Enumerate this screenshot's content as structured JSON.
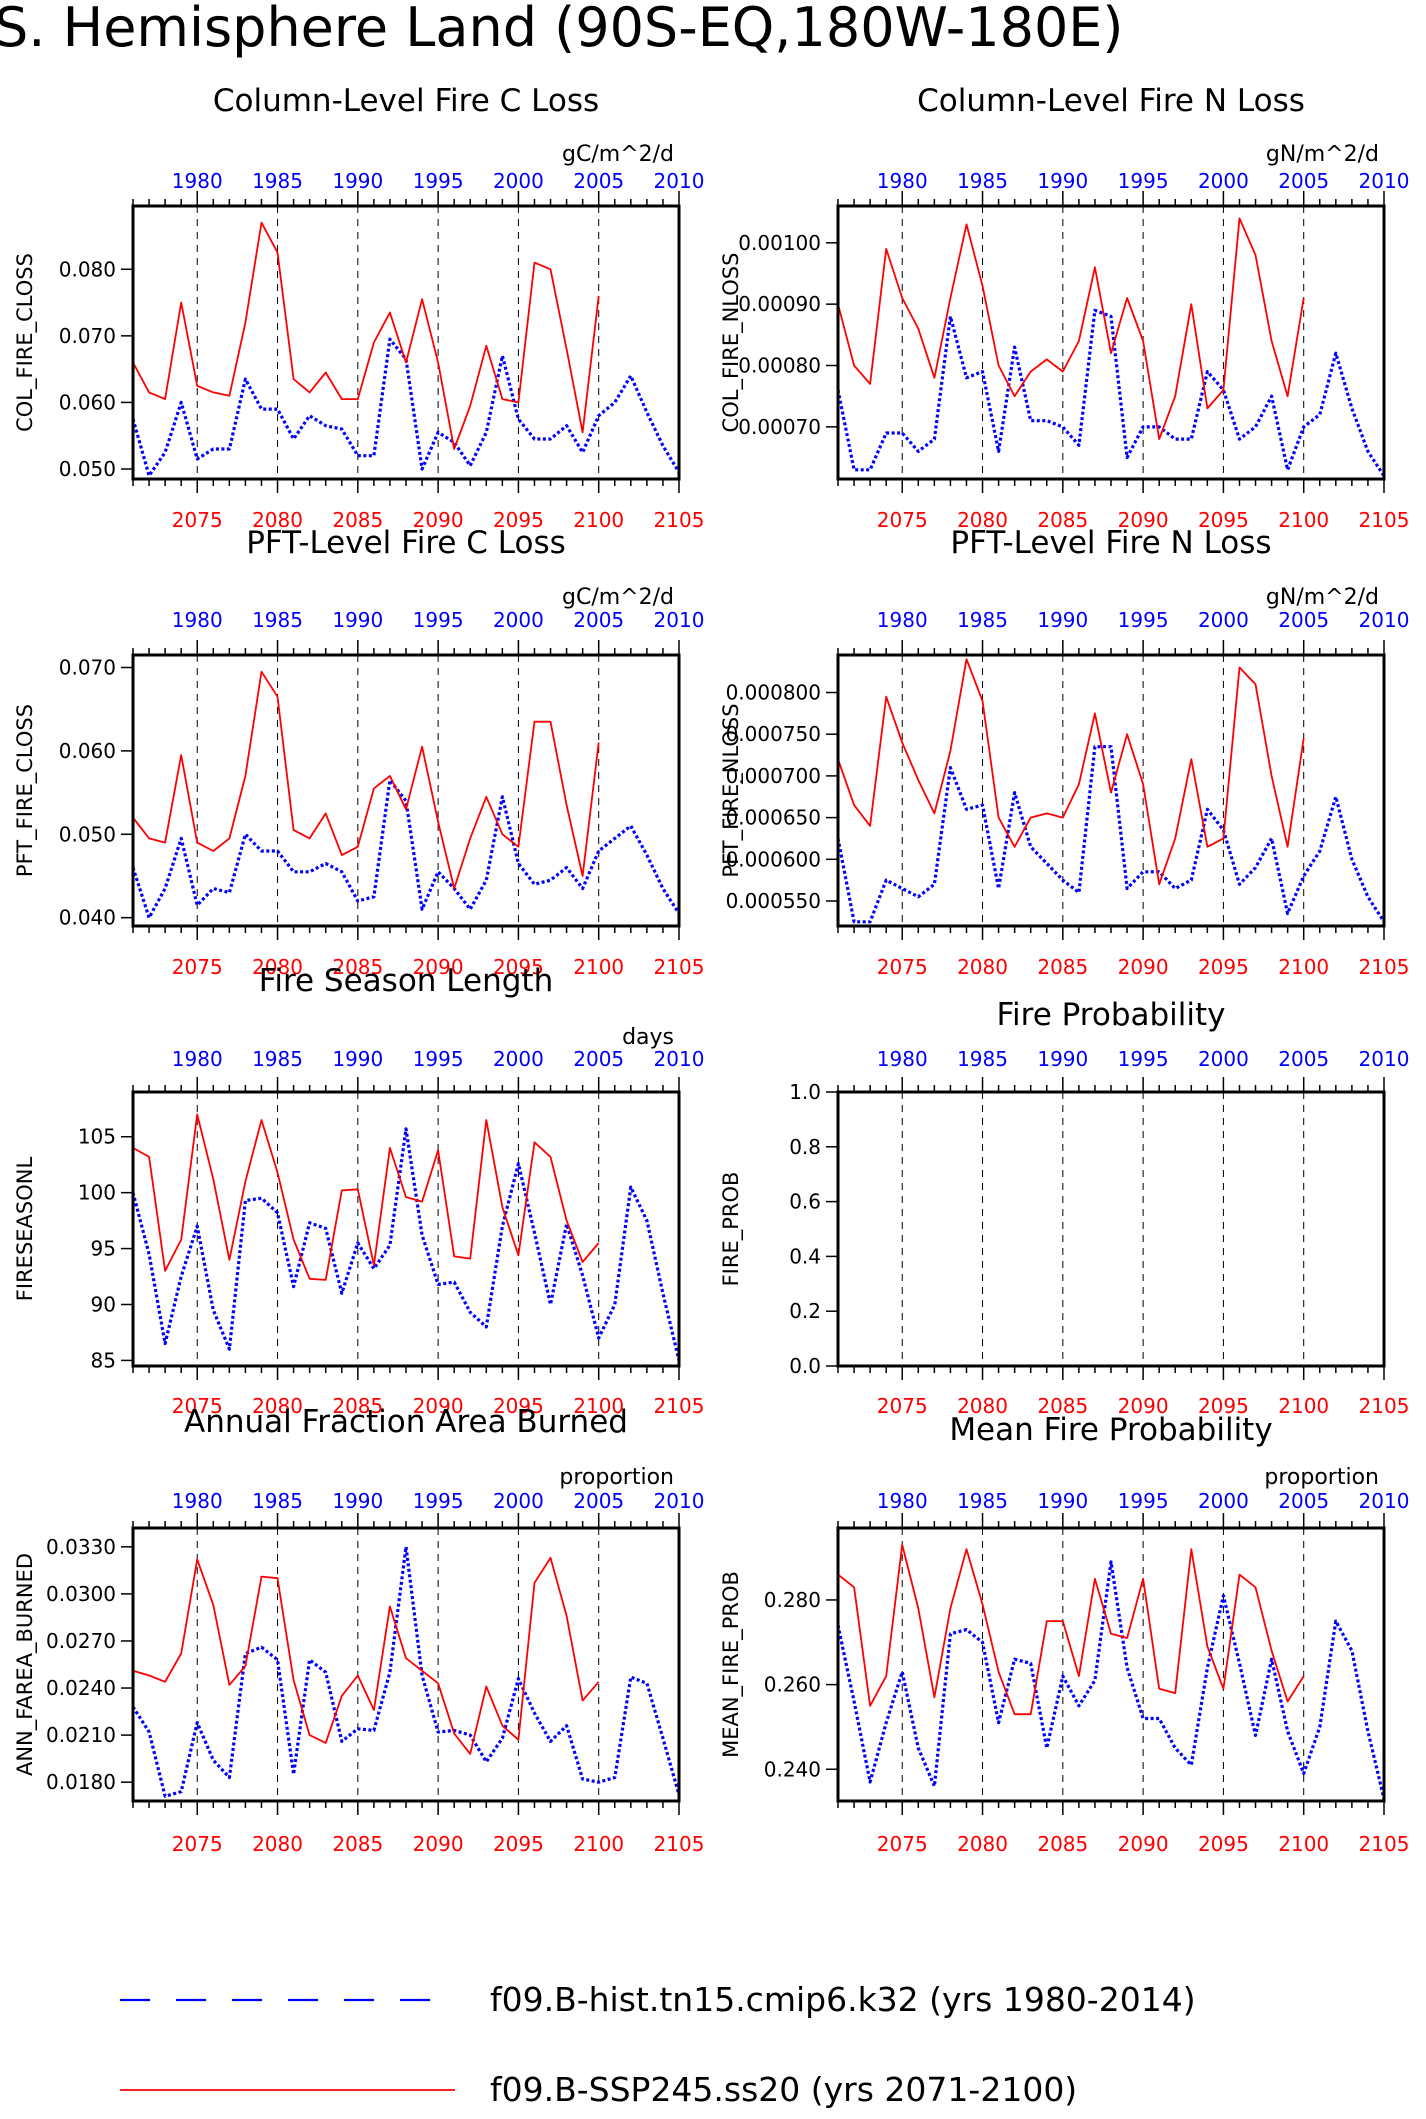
{
  "title": "S. Hemisphere Land (90S-EQ,180W-180E)",
  "colors": {
    "hist": "#0000ff",
    "ssp": "#ff0000",
    "axis": "#000000"
  },
  "top_axis": {
    "ticks": [
      "1980",
      "1985",
      "1990",
      "1995",
      "2000",
      "2005",
      "2010"
    ],
    "range": [
      1976,
      2010
    ]
  },
  "bottom_axis": {
    "ticks": [
      "2075",
      "2080",
      "2085",
      "2090",
      "2095",
      "2100",
      "2105"
    ],
    "range": [
      2071,
      2105
    ]
  },
  "legend": {
    "hist": "f09.B-hist.tn15.cmip6.k32 (yrs 1980-2014)",
    "ssp": "f09.B-SSP245.ss20 (yrs 2071-2100)"
  },
  "chart_data": [
    {
      "type": "line",
      "title": "Column-Level Fire C Loss",
      "units": "gC/m^2/d",
      "ylabel": "COL_FIRE_CLOSS",
      "ylim": [
        0.0485,
        0.0895
      ],
      "yticks": [
        0.05,
        0.06,
        0.07,
        0.08
      ],
      "ytick_labels": [
        "0.050",
        "0.060",
        "0.070",
        "0.080"
      ],
      "series": [
        {
          "key": "hist",
          "x_start": 1976,
          "values": [
            0.0575,
            0.049,
            0.0525,
            0.06,
            0.0515,
            0.053,
            0.053,
            0.0635,
            0.059,
            0.059,
            0.0545,
            0.058,
            0.0565,
            0.056,
            0.052,
            0.052,
            0.0695,
            0.0665,
            0.05,
            0.0555,
            0.054,
            0.0505,
            0.0555,
            0.067,
            0.0575,
            0.0545,
            0.0545,
            0.0565,
            0.0525,
            0.058,
            0.06,
            0.064,
            0.0585,
            0.0535,
            0.0495
          ]
        },
        {
          "key": "ssp",
          "x_start": 2071,
          "values": [
            0.066,
            0.0615,
            0.0605,
            0.075,
            0.0625,
            0.0615,
            0.061,
            0.072,
            0.087,
            0.0825,
            0.0635,
            0.0615,
            0.0645,
            0.0605,
            0.0605,
            0.069,
            0.0735,
            0.066,
            0.0755,
            0.066,
            0.053,
            0.0595,
            0.0685,
            0.0605,
            0.06,
            0.081,
            0.08,
            0.068,
            0.0555,
            0.076
          ]
        }
      ]
    },
    {
      "type": "line",
      "title": "Column-Level Fire N Loss",
      "units": "gN/m^2/d",
      "ylabel": "COL_FIRE_NLOSS",
      "ylim": [
        0.000615,
        0.00106
      ],
      "yticks": [
        0.0007,
        0.0008,
        0.0009,
        0.001
      ],
      "ytick_labels": [
        "0.00070",
        "0.00080",
        "0.00090",
        "0.00100"
      ],
      "series": [
        {
          "key": "hist",
          "x_start": 1976,
          "values": [
            0.00076,
            0.00063,
            0.00063,
            0.00069,
            0.00069,
            0.00066,
            0.00068,
            0.00088,
            0.00078,
            0.00079,
            0.00066,
            0.00083,
            0.00071,
            0.00071,
            0.0007,
            0.00067,
            0.00089,
            0.00088,
            0.00065,
            0.0007,
            0.0007,
            0.00068,
            0.00068,
            0.00079,
            0.00076,
            0.00068,
            0.0007,
            0.00075,
            0.00063,
            0.0007,
            0.00072,
            0.00082,
            0.00073,
            0.00066,
            0.00062
          ]
        },
        {
          "key": "ssp",
          "x_start": 2071,
          "values": [
            0.0009,
            0.0008,
            0.00077,
            0.00099,
            0.00091,
            0.00086,
            0.00078,
            0.00091,
            0.00103,
            0.00093,
            0.0008,
            0.00075,
            0.00079,
            0.00081,
            0.00079,
            0.00084,
            0.00096,
            0.00082,
            0.00091,
            0.00084,
            0.00068,
            0.00075,
            0.0009,
            0.00073,
            0.00076,
            0.00104,
            0.00098,
            0.00084,
            0.00075,
            0.00091
          ]
        }
      ]
    },
    {
      "type": "line",
      "title": "PFT-Level Fire C Loss",
      "units": "gC/m^2/d",
      "ylabel": "PFT_FIRE_CLOSS",
      "ylim": [
        0.039,
        0.0715
      ],
      "yticks": [
        0.04,
        0.05,
        0.06,
        0.07
      ],
      "ytick_labels": [
        "0.040",
        "0.050",
        "0.060",
        "0.070"
      ],
      "series": [
        {
          "key": "hist",
          "x_start": 1976,
          "values": [
            0.046,
            0.04,
            0.0435,
            0.0495,
            0.0415,
            0.0435,
            0.043,
            0.05,
            0.048,
            0.048,
            0.0455,
            0.0455,
            0.0465,
            0.0455,
            0.042,
            0.0425,
            0.0565,
            0.054,
            0.041,
            0.0455,
            0.0435,
            0.041,
            0.0445,
            0.0545,
            0.0465,
            0.044,
            0.0445,
            0.046,
            0.0435,
            0.048,
            0.0495,
            0.051,
            0.0475,
            0.0435,
            0.0405
          ]
        },
        {
          "key": "ssp",
          "x_start": 2071,
          "values": [
            0.052,
            0.0495,
            0.049,
            0.0595,
            0.049,
            0.048,
            0.0495,
            0.057,
            0.0695,
            0.0665,
            0.0505,
            0.0495,
            0.0525,
            0.0475,
            0.0485,
            0.0555,
            0.057,
            0.053,
            0.0605,
            0.0515,
            0.0435,
            0.0495,
            0.0545,
            0.05,
            0.0485,
            0.0635,
            0.0635,
            0.0535,
            0.045,
            0.061
          ]
        }
      ]
    },
    {
      "type": "line",
      "title": "PFT-Level Fire N Loss",
      "units": "gN/m^2/d",
      "ylabel": "PFT_FIRE_NLOSS",
      "ylim": [
        0.00052,
        0.000845
      ],
      "yticks": [
        0.00055,
        0.0006,
        0.00065,
        0.0007,
        0.00075,
        0.0008
      ],
      "ytick_labels": [
        "0.000550",
        "0.000600",
        "0.000650",
        "0.000700",
        "0.000750",
        "0.000800"
      ],
      "series": [
        {
          "key": "hist",
          "x_start": 1976,
          "values": [
            0.000625,
            0.000525,
            0.000525,
            0.000575,
            0.000565,
            0.000555,
            0.00057,
            0.00071,
            0.00066,
            0.000665,
            0.000565,
            0.00068,
            0.000615,
            0.000595,
            0.000575,
            0.00056,
            0.000735,
            0.000735,
            0.000565,
            0.000585,
            0.000585,
            0.000565,
            0.000575,
            0.00066,
            0.000635,
            0.00057,
            0.00059,
            0.000625,
            0.000535,
            0.00058,
            0.00061,
            0.000675,
            0.0006,
            0.000555,
            0.000525
          ]
        },
        {
          "key": "ssp",
          "x_start": 2071,
          "values": [
            0.00072,
            0.000665,
            0.00064,
            0.000795,
            0.00074,
            0.000695,
            0.000655,
            0.00073,
            0.00084,
            0.00079,
            0.00065,
            0.000615,
            0.00065,
            0.000655,
            0.00065,
            0.00069,
            0.000775,
            0.00068,
            0.00075,
            0.00069,
            0.00057,
            0.000625,
            0.00072,
            0.000615,
            0.000625,
            0.00083,
            0.00081,
            0.0007,
            0.000615,
            0.000745
          ]
        }
      ]
    },
    {
      "type": "line",
      "title": "Fire Season Length",
      "units": "days",
      "ylabel": "FIRESEASONL",
      "ylim": [
        84.5,
        109
      ],
      "yticks": [
        85,
        90,
        95,
        100,
        105
      ],
      "ytick_labels": [
        "85",
        "90",
        "95",
        "100",
        "105"
      ],
      "series": [
        {
          "key": "hist",
          "x_start": 1976,
          "values": [
            100,
            94.5,
            86.5,
            92.5,
            97,
            89.5,
            86,
            99.3,
            99.5,
            98.2,
            91.6,
            97.3,
            96.8,
            91,
            95.5,
            93.2,
            95.3,
            105.7,
            96.2,
            91.8,
            92,
            89.3,
            88,
            97,
            102.6,
            96.4,
            90,
            97.2,
            92.6,
            87,
            90,
            100.5,
            97.5,
            91,
            85
          ]
        },
        {
          "key": "ssp",
          "x_start": 2071,
          "values": [
            104,
            103.2,
            93,
            95.8,
            107,
            101.2,
            94,
            101,
            106.5,
            101.8,
            95.8,
            92.3,
            92.2,
            100.2,
            100.3,
            93.5,
            104,
            99.6,
            99.2,
            103.8,
            94.3,
            94.1,
            106.5,
            98.7,
            94.4,
            104.5,
            103.2,
            97.5,
            93.8,
            95.5
          ]
        }
      ]
    },
    {
      "type": "line",
      "title": "Fire Probability",
      "units": "",
      "ylabel": "FIRE_PROB",
      "ylim": [
        0,
        1
      ],
      "yticks": [
        0,
        0.2,
        0.4,
        0.6,
        0.8,
        1.0
      ],
      "ytick_labels": [
        "0.0",
        "0.2",
        "0.4",
        "0.6",
        "0.8",
        "1.0"
      ],
      "series": []
    },
    {
      "type": "line",
      "title": "Annual Fraction Area Burned",
      "units": "proportion",
      "ylabel": "ANN_FAREA_BURNED",
      "ylim": [
        0.0168,
        0.0342
      ],
      "yticks": [
        0.018,
        0.021,
        0.024,
        0.027,
        0.03,
        0.033
      ],
      "ytick_labels": [
        "0.0180",
        "0.0210",
        "0.0240",
        "0.0270",
        "0.0300",
        "0.0330"
      ],
      "series": [
        {
          "key": "hist",
          "x_start": 1976,
          "values": [
            0.0228,
            0.0212,
            0.0171,
            0.0174,
            0.0218,
            0.0194,
            0.0183,
            0.0262,
            0.0266,
            0.0258,
            0.0185,
            0.0258,
            0.025,
            0.0206,
            0.0214,
            0.0213,
            0.025,
            0.033,
            0.0248,
            0.0212,
            0.0213,
            0.021,
            0.0193,
            0.0208,
            0.0246,
            0.0224,
            0.0206,
            0.0216,
            0.0182,
            0.018,
            0.0183,
            0.0247,
            0.0243,
            0.0208,
            0.0172
          ]
        },
        {
          "key": "ssp",
          "x_start": 2071,
          "values": [
            0.0251,
            0.0248,
            0.0244,
            0.0262,
            0.0322,
            0.0293,
            0.0242,
            0.0254,
            0.0311,
            0.031,
            0.0245,
            0.021,
            0.0205,
            0.0235,
            0.0248,
            0.0226,
            0.0292,
            0.0259,
            0.0251,
            0.0243,
            0.0211,
            0.0198,
            0.0241,
            0.0216,
            0.0207,
            0.0307,
            0.0323,
            0.0286,
            0.0232,
            0.0244
          ]
        }
      ]
    },
    {
      "type": "line",
      "title": "Mean Fire Probability",
      "units": "proportion",
      "ylabel": "MEAN_FIRE_PROB",
      "ylim": [
        0.2325,
        0.297
      ],
      "yticks": [
        0.24,
        0.26,
        0.28
      ],
      "ytick_labels": [
        "0.240",
        "0.260",
        "0.280"
      ],
      "series": [
        {
          "key": "hist",
          "x_start": 1976,
          "values": [
            0.274,
            0.256,
            0.237,
            0.251,
            0.263,
            0.245,
            0.236,
            0.272,
            0.273,
            0.27,
            0.251,
            0.266,
            0.265,
            0.245,
            0.262,
            0.255,
            0.261,
            0.289,
            0.264,
            0.252,
            0.252,
            0.245,
            0.241,
            0.264,
            0.281,
            0.265,
            0.248,
            0.266,
            0.249,
            0.239,
            0.25,
            0.275,
            0.268,
            0.249,
            0.233
          ]
        },
        {
          "key": "ssp",
          "x_start": 2071,
          "values": [
            0.286,
            0.283,
            0.255,
            0.262,
            0.293,
            0.278,
            0.257,
            0.278,
            0.292,
            0.279,
            0.263,
            0.253,
            0.253,
            0.275,
            0.275,
            0.262,
            0.285,
            0.272,
            0.271,
            0.285,
            0.259,
            0.258,
            0.292,
            0.269,
            0.259,
            0.286,
            0.283,
            0.268,
            0.256,
            0.262
          ]
        }
      ]
    }
  ]
}
